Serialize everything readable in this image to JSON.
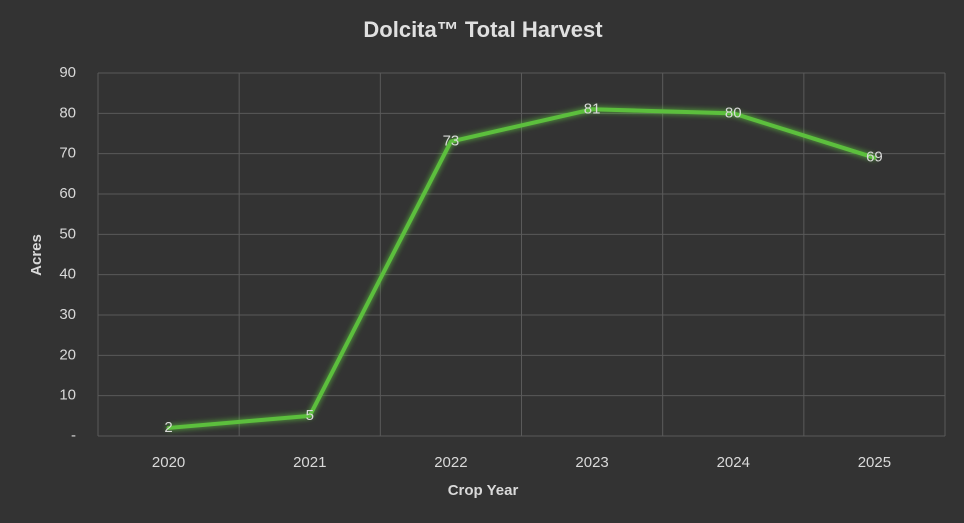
{
  "chart_data": {
    "type": "line",
    "title": "Dolcita™ Total Harvest",
    "x_label": "Crop Year",
    "y_label": "Acres",
    "categories": [
      "2020",
      "2021",
      "2022",
      "2023",
      "2024",
      "2025"
    ],
    "values": [
      2,
      5,
      73,
      81,
      80,
      69
    ],
    "color": "#5cbf3c",
    "ylim": [
      0,
      90
    ],
    "yticks": [
      {
        "value": 0,
        "label": "-"
      },
      10,
      20,
      30,
      40,
      50,
      60,
      70,
      80,
      90
    ],
    "grid": true
  }
}
